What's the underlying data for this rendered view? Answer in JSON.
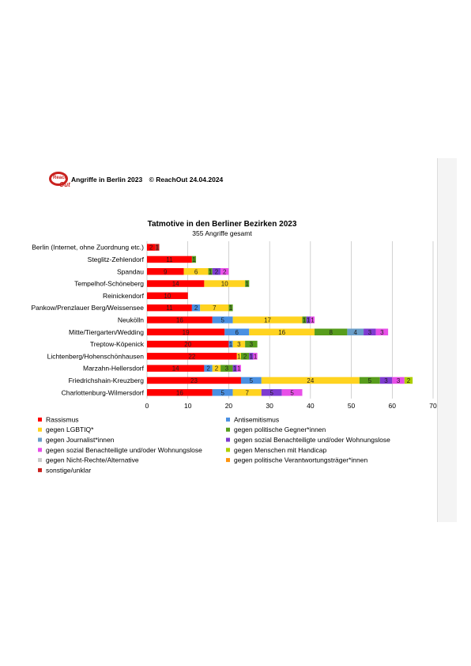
{
  "header": {
    "logo_text": "Reach Out",
    "title": "Angriffe in Berlin 2023",
    "copyright": "© ReachOut 24.04.2024"
  },
  "colors": {
    "Rassismus": "#ff0000",
    "Antisemitismus": "#4a90e2",
    "gegen LGBTIQ*": "#ffd320",
    "gegen politische Gegner*innen": "#579d1c",
    "gegen Journalist*innen": "#6a9ec9",
    "gegen sozial Benachteiligte und/oder Wohnungslose (violet)": "#7e3bd0",
    "gegen sozial Benachteiligte und/oder Wohnungslose (magenta)": "#e84fe8",
    "gegen Menschen mit Handicap": "#aecf00",
    "gegen Nicht-Rechte/Alternative": "#c8c8c8",
    "gegen politische Verantwortungsträger*innen": "#ff950e",
    "sonstige/unklar": "#c9211e"
  },
  "chart_data": {
    "type": "bar",
    "orientation": "horizontal",
    "stacked": true,
    "title": "Tatmotive in den Berliner Bezirken 2023",
    "subtitle": "355 Angriffe gesamt",
    "xlim": [
      0,
      70
    ],
    "xticks": [
      0,
      10,
      20,
      30,
      40,
      50,
      60,
      70
    ],
    "grid": true,
    "legend_position": "bottom",
    "categories": [
      "Berlin (Internet, ohne Zuordnung etc.)",
      "Steglitz-Zehlendorf",
      "Spandau",
      "Tempelhof-Schöneberg",
      "Reinickendorf",
      "Pankow/Prenzlauer Berg/Weissensee",
      "Neukölln",
      "Mitte/Tiergarten/Wedding",
      "Treptow-Köpenick",
      "Lichtenberg/Hohenschönhausen",
      "Marzahn-Hellersdorf",
      "Friedrichshain-Kreuzberg",
      "Charlottenburg-Wilmersdorf"
    ],
    "series": [
      {
        "name": "Rassismus",
        "color": "#ff0000",
        "values": [
          2,
          11,
          9,
          14,
          10,
          11,
          16,
          19,
          20,
          22,
          14,
          23,
          16
        ]
      },
      {
        "name": "Antisemitismus",
        "color": "#4a90e2",
        "values": [
          0,
          0,
          0,
          0,
          0,
          2,
          5,
          6,
          1,
          0,
          2,
          5,
          5
        ]
      },
      {
        "name": "gegen LGBTIQ*",
        "color": "#ffd320",
        "values": [
          0,
          0,
          6,
          10,
          0,
          7,
          17,
          16,
          3,
          1,
          2,
          24,
          7
        ]
      },
      {
        "name": "gegen politische Gegner*innen",
        "color": "#579d1c",
        "values": [
          0,
          1,
          1,
          1,
          0,
          1,
          1,
          8,
          3,
          2,
          3,
          5,
          0
        ]
      },
      {
        "name": "gegen Journalist*innen",
        "color": "#6a9ec9",
        "values": [
          0,
          0,
          0,
          0,
          0,
          0,
          0,
          4,
          0,
          0,
          0,
          0,
          0
        ]
      },
      {
        "name": "gegen sozial Benachteiligte und/oder Wohnungslose",
        "color": "#7e3bd0",
        "values": [
          0,
          0,
          2,
          0,
          0,
          0,
          1,
          3,
          0,
          1,
          1,
          3,
          5
        ]
      },
      {
        "name": "gegen sozial Benachteiligte und/oder Wohnungslose",
        "color": "#e84fe8",
        "values": [
          0,
          0,
          2,
          0,
          0,
          0,
          1,
          3,
          0,
          1,
          1,
          3,
          5
        ]
      },
      {
        "name": "gegen Menschen mit Handicap",
        "color": "#aecf00",
        "values": [
          0,
          0,
          0,
          0,
          0,
          0,
          0,
          0,
          0,
          0,
          0,
          2,
          0
        ]
      },
      {
        "name": "gegen Nicht-Rechte/Alternative",
        "color": "#c8c8c8",
        "values": [
          0,
          0,
          0,
          0,
          0,
          0,
          0,
          0,
          0,
          0,
          0,
          0,
          0
        ]
      },
      {
        "name": "gegen politische Verantwortungsträger*innen",
        "color": "#ff950e",
        "values": [
          0,
          0,
          0,
          0,
          0,
          0,
          0,
          0,
          0,
          0,
          0,
          0,
          0
        ]
      },
      {
        "name": "sonstige/unklar",
        "color": "#c9211e",
        "values": [
          1,
          0,
          0,
          0,
          0,
          0,
          0,
          0,
          0,
          0,
          0,
          0,
          0
        ]
      }
    ],
    "legend": [
      {
        "label": "Rassismus",
        "color": "#ff0000"
      },
      {
        "label": "Antisemitismus",
        "color": "#4a90e2"
      },
      {
        "label": "gegen LGBTIQ*",
        "color": "#ffd320"
      },
      {
        "label": "gegen politische Gegner*innen",
        "color": "#579d1c"
      },
      {
        "label": "gegen Journalist*innen",
        "color": "#6a9ec9"
      },
      {
        "label": "gegen sozial Benachteiligte und/oder Wohnungslose",
        "color": "#7e3bd0"
      },
      {
        "label": "gegen sozial Benachteiligte und/oder Wohnungslose",
        "color": "#e84fe8"
      },
      {
        "label": "gegen Menschen mit Handicap",
        "color": "#aecf00"
      },
      {
        "label": "gegen Nicht-Rechte/Alternative",
        "color": "#c8c8c8"
      },
      {
        "label": "gegen politische Verantwortungsträger*innen",
        "color": "#ff950e"
      },
      {
        "label": "sonstige/unklar",
        "color": "#c9211e"
      }
    ]
  }
}
